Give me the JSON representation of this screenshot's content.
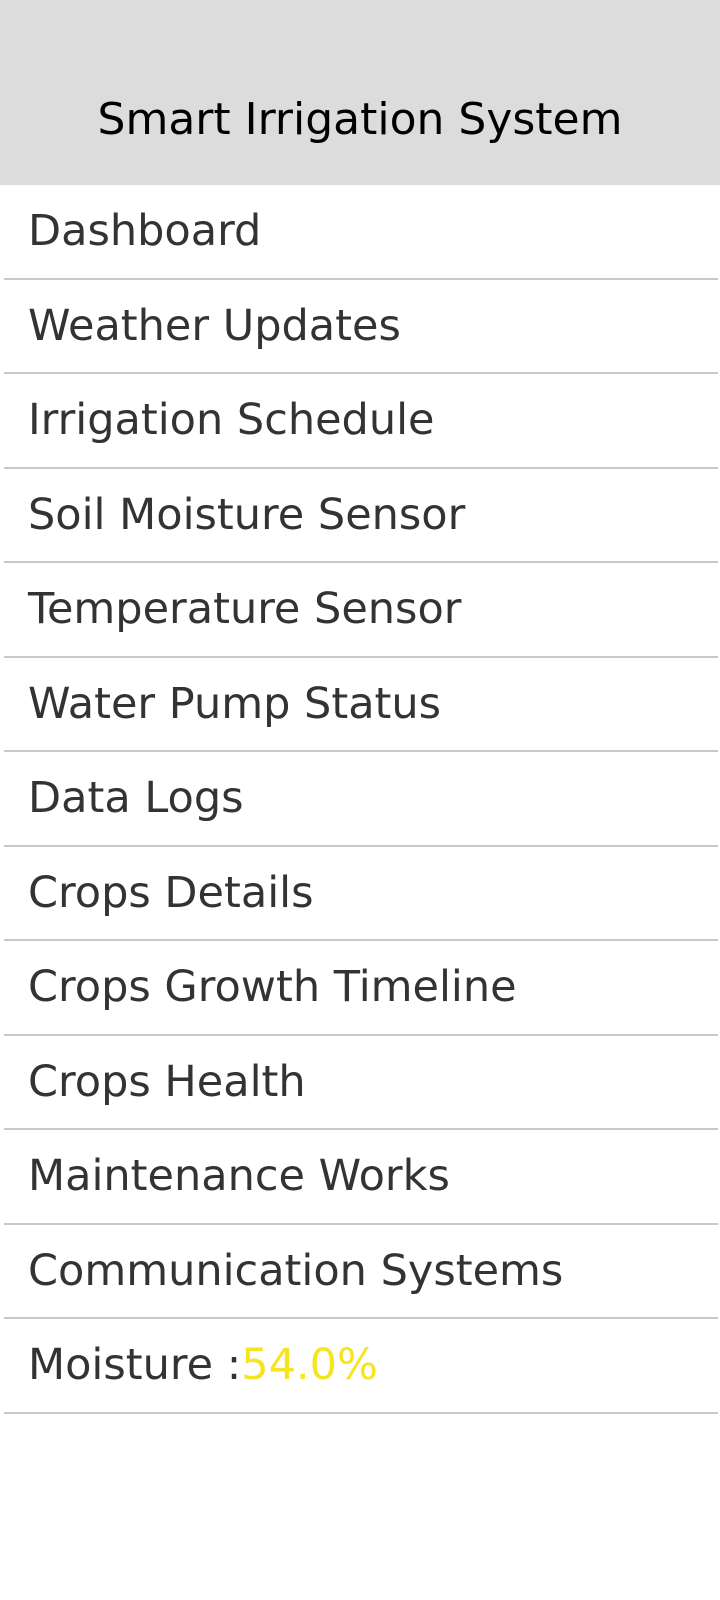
{
  "header": {
    "title": "Smart Irrigation System"
  },
  "menu": {
    "items": [
      {
        "label": "Dashboard"
      },
      {
        "label": "Weather Updates"
      },
      {
        "label": "Irrigation Schedule"
      },
      {
        "label": "Soil Moisture Sensor"
      },
      {
        "label": "Temperature Sensor"
      },
      {
        "label": "Water Pump Status"
      },
      {
        "label": "Data Logs"
      },
      {
        "label": "Crops Details"
      },
      {
        "label": "Crops Growth Timeline"
      },
      {
        "label": "Crops Health"
      },
      {
        "label": "Maintenance Works"
      },
      {
        "label": "Communication Systems"
      }
    ]
  },
  "moisture": {
    "label": "Moisture :",
    "value": "54.0%",
    "value_color": "#f5e51f"
  },
  "colors": {
    "header_background": "#dcdcdc",
    "divider": "#c8c8c8",
    "item_text": "#333333"
  }
}
